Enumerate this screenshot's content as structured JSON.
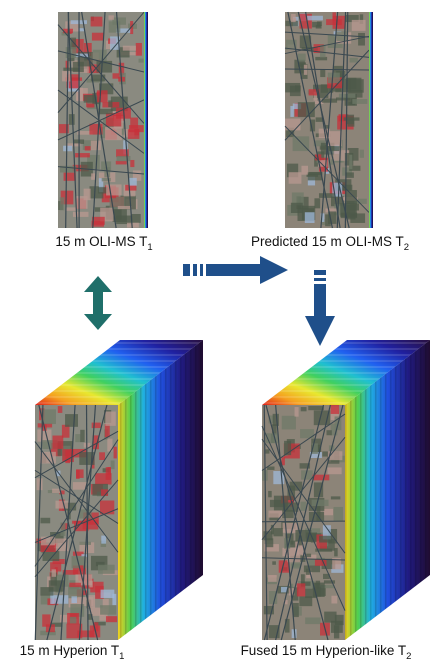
{
  "labels": [
    {
      "text": "15 m OLI-MS T",
      "subscript": "1"
    },
    {
      "text": "Predicted 15 m OLI-MS T",
      "subscript": "2"
    },
    {
      "text": "15 m Hyperion T",
      "subscript": "1"
    },
    {
      "text": "Fused 15 m Hyperion-like T",
      "subscript": "2"
    }
  ]
}
